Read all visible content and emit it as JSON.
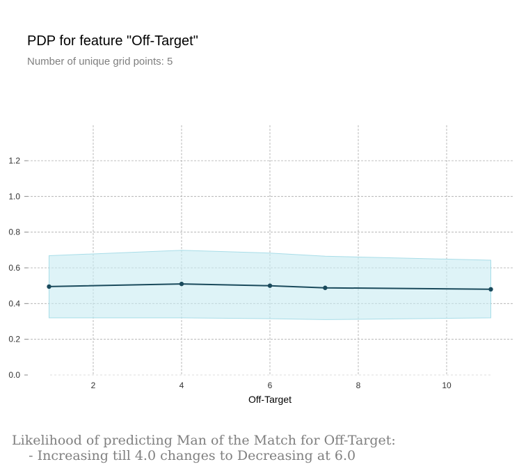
{
  "chart_data": {
    "type": "line",
    "title": "PDP for feature \"Off-Target\"",
    "subtitle": "Number of unique grid points: 5",
    "xlabel": "Off-Target",
    "ylabel": "",
    "xlim": [
      0.5,
      11.5
    ],
    "ylim": [
      0.0,
      1.4
    ],
    "x_ticks": [
      2,
      4,
      6,
      8,
      10
    ],
    "y_ticks": [
      0.0,
      0.2,
      0.4,
      0.6,
      0.8,
      1.0,
      1.2
    ],
    "x_tick_labels": [
      "2",
      "4",
      "6",
      "8",
      "10"
    ],
    "y_tick_labels": [
      "0.0",
      "0.2",
      "0.4",
      "0.6",
      "0.8",
      "1.0",
      "1.2"
    ],
    "grid": true,
    "series": [
      {
        "x": [
          1,
          4,
          6,
          7.25,
          11
        ],
        "values": [
          0.495,
          0.51,
          0.5,
          0.488,
          0.48
        ],
        "upper": [
          0.668,
          0.698,
          0.683,
          0.665,
          0.643
        ],
        "lower": [
          0.32,
          0.32,
          0.315,
          0.31,
          0.32
        ]
      }
    ],
    "colors": {
      "line": "#1a4a5c",
      "band": "#c8ebf2",
      "band_edge": "#a8dde8",
      "grid": "#aaaaaa"
    }
  },
  "caption": {
    "line1": "Likelihood of predicting Man of the Match for Off-Target:",
    "line2": "    - Increasing till 4.0 changes to Decreasing at 6.0"
  }
}
